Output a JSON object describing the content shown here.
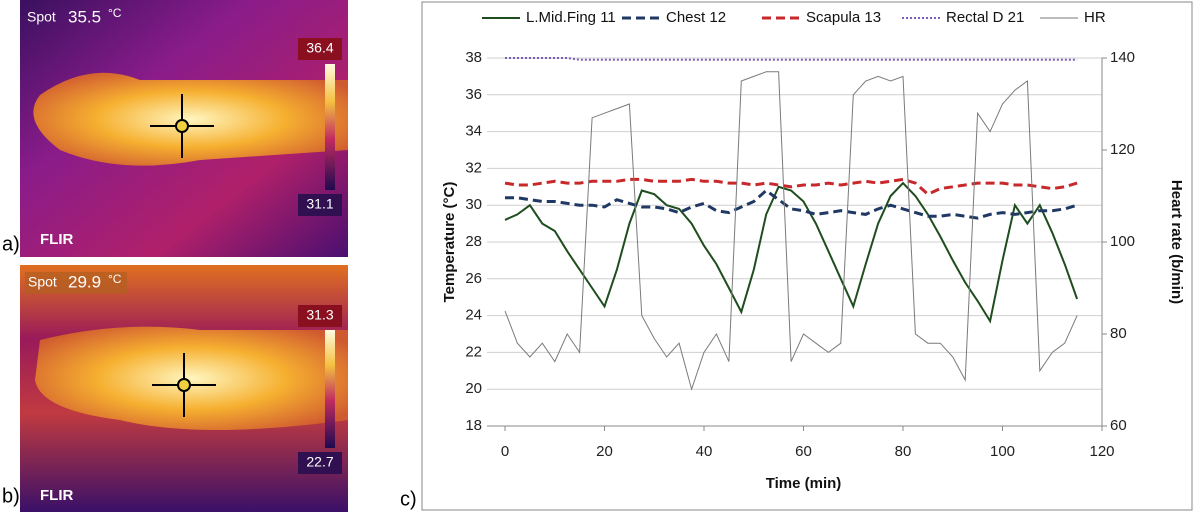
{
  "panels": [
    {
      "label": "a)",
      "spot_label": "Spot",
      "spot_value": "35.5",
      "spot_unit": "°C",
      "scale_max": "36.4",
      "scale_min": "31.1",
      "brand": "FLIR"
    },
    {
      "label": "b)",
      "spot_label": "Spot",
      "spot_value": "29.9",
      "spot_unit": "°C",
      "scale_max": "31.3",
      "scale_min": "22.7",
      "brand": "FLIR"
    }
  ],
  "chart_label": "c)",
  "chart_data": {
    "type": "line",
    "xlabel": "Time (min)",
    "ylabel": "Temperature (°C)",
    "y2label": "Heart rate (b/min)",
    "x": [
      0,
      2.5,
      5,
      7.5,
      10,
      12.5,
      15,
      17.5,
      20,
      22.5,
      25,
      27.5,
      30,
      32.5,
      35,
      37.5,
      40,
      42.5,
      45,
      47.5,
      50,
      52.5,
      55,
      57.5,
      60,
      62.5,
      65,
      67.5,
      70,
      72.5,
      75,
      77.5,
      80,
      82.5,
      85,
      87.5,
      90,
      92.5,
      95,
      97.5,
      100,
      102.5,
      105,
      107.5,
      110,
      112.5,
      115
    ],
    "xlim": [
      0,
      120
    ],
    "xticks": [
      0,
      20,
      40,
      60,
      80,
      100,
      120
    ],
    "ylim": [
      18,
      38
    ],
    "yticks": [
      18,
      20,
      22,
      24,
      26,
      28,
      30,
      32,
      34,
      36,
      38
    ],
    "y2lim": [
      60,
      140
    ],
    "y2ticks": [
      60,
      80,
      100,
      120,
      140
    ],
    "grid": true,
    "legend": "top",
    "series": [
      {
        "name": "L.Mid.Fing 11",
        "color": "#1e4d1e",
        "style": "solid",
        "values": [
          29.2,
          29.5,
          30.0,
          29.0,
          28.6,
          27.5,
          26.5,
          25.5,
          24.5,
          26.5,
          29.0,
          30.8,
          30.6,
          30.0,
          29.8,
          29.0,
          27.8,
          26.8,
          25.5,
          24.2,
          26.5,
          29.5,
          31.0,
          30.8,
          30.2,
          29.0,
          27.5,
          26.0,
          24.5,
          26.8,
          29.0,
          30.5,
          31.2,
          30.5,
          29.5,
          28.3,
          27.0,
          25.8,
          24.8,
          23.7,
          27.0,
          30.0,
          29.0,
          30.0,
          28.5,
          26.8,
          24.9
        ]
      },
      {
        "name": "Chest 12",
        "color": "#1f3864",
        "style": "dashed",
        "values": [
          30.4,
          30.4,
          30.3,
          30.2,
          30.2,
          30.1,
          30.0,
          30.0,
          29.9,
          30.3,
          30.1,
          29.9,
          29.9,
          29.8,
          29.6,
          29.9,
          30.1,
          29.7,
          29.6,
          29.9,
          30.2,
          30.8,
          30.3,
          29.8,
          29.7,
          29.5,
          29.6,
          29.7,
          29.6,
          29.5,
          29.8,
          30.0,
          29.8,
          29.6,
          29.4,
          29.4,
          29.5,
          29.4,
          29.3,
          29.5,
          29.6,
          29.5,
          29.6,
          29.7,
          29.7,
          29.8,
          30.0
        ]
      },
      {
        "name": "Scapula 13",
        "color": "#c8282a",
        "style": "dashed",
        "values": [
          31.2,
          31.1,
          31.1,
          31.2,
          31.3,
          31.2,
          31.2,
          31.3,
          31.3,
          31.3,
          31.4,
          31.4,
          31.3,
          31.3,
          31.3,
          31.4,
          31.3,
          31.3,
          31.2,
          31.2,
          31.1,
          31.2,
          31.1,
          31.0,
          31.1,
          31.1,
          31.2,
          31.1,
          31.2,
          31.3,
          31.2,
          31.3,
          31.4,
          31.2,
          30.6,
          30.9,
          31.0,
          31.1,
          31.2,
          31.2,
          31.2,
          31.1,
          31.1,
          31.0,
          30.9,
          31.0,
          31.2
        ]
      },
      {
        "name": "Rectal D 21",
        "color": "#7a5fb8",
        "style": "dotted",
        "values": [
          38.0,
          38.0,
          38.0,
          38.0,
          38.0,
          38.0,
          37.9,
          37.9,
          37.9,
          37.9,
          37.9,
          37.9,
          37.9,
          37.9,
          37.9,
          37.9,
          37.9,
          37.9,
          37.9,
          37.9,
          37.9,
          37.9,
          37.9,
          37.9,
          37.9,
          37.9,
          37.9,
          37.9,
          37.9,
          37.9,
          37.9,
          37.9,
          37.9,
          37.9,
          37.9,
          37.9,
          37.9,
          37.9,
          37.9,
          37.9,
          37.9,
          37.9,
          37.9,
          37.9,
          37.9,
          37.9,
          37.9
        ]
      },
      {
        "name": "HR",
        "color": "#7a7a7a",
        "style": "thin",
        "axis": "y2",
        "values": [
          85,
          78,
          75,
          78,
          74,
          80,
          76,
          127,
          128,
          129,
          130,
          84,
          79,
          75,
          78,
          68,
          76,
          80,
          74,
          135,
          136,
          137,
          137,
          74,
          80,
          78,
          76,
          78,
          132,
          135,
          136,
          135,
          136,
          80,
          78,
          78,
          75,
          70,
          128,
          124,
          130,
          133,
          135,
          72,
          76,
          78,
          84
        ]
      }
    ]
  }
}
